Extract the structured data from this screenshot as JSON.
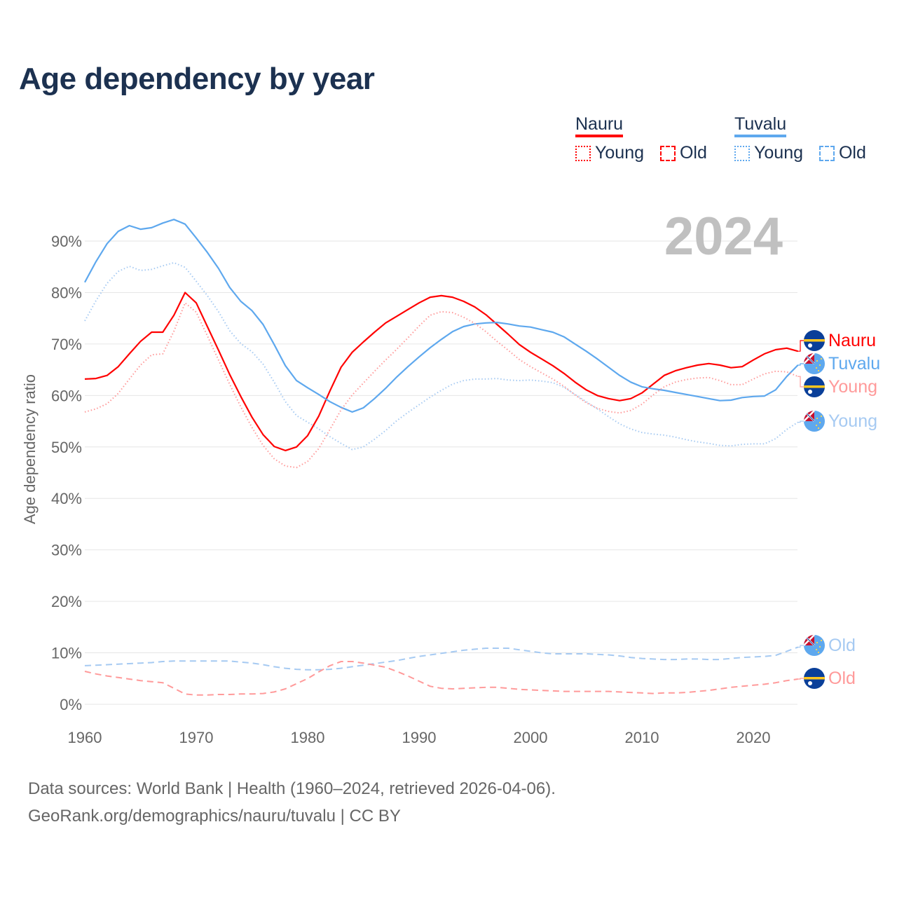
{
  "title": "Age dependency by year",
  "legend": {
    "groups": [
      {
        "country": "Nauru",
        "items": [
          "Young",
          "Old"
        ]
      },
      {
        "country": "Tuvalu",
        "items": [
          "Young",
          "Old"
        ]
      }
    ]
  },
  "year_label": "2024",
  "footer": {
    "line1": "Data sources: World Bank | Health (1960–2024, retrieved 2026-04-06).",
    "line2": "GeoRank.org/demographics/nauru/tuvalu | CC BY"
  },
  "colors": {
    "nauru": "#ff0000",
    "nauru_light": "#ff9a9a",
    "tuvalu": "#5ea8ee",
    "tuvalu_light": "#a6caf2",
    "grid": "#e6e6e6",
    "axis_text": "#666666",
    "year": "#c0c0c0"
  },
  "chart_data": {
    "type": "line",
    "title": "Age dependency by year",
    "xlabel": "",
    "ylabel": "Age dependency ratio",
    "xlim": [
      1960,
      2024
    ],
    "ylim": [
      0,
      95
    ],
    "x_ticks": [
      "1960",
      "1970",
      "1980",
      "1990",
      "2000",
      "2010",
      "2020"
    ],
    "y_ticks": [
      "0%",
      "10%",
      "20%",
      "30%",
      "40%",
      "50%",
      "60%",
      "70%",
      "80%",
      "90%"
    ],
    "x_start": 1960,
    "series": [
      {
        "name": "Nauru",
        "country": "Nauru",
        "kind": "Total",
        "end_label": "Nauru",
        "style": "solid",
        "color_key": "nauru",
        "values": [
          63.2,
          63.3,
          63.9,
          65.6,
          68.1,
          70.5,
          72.3,
          72.3,
          75.6,
          80.0,
          78.0,
          73.4,
          68.8,
          64.1,
          59.8,
          55.8,
          52.4,
          50.1,
          49.3,
          50.0,
          52.2,
          56.0,
          60.9,
          65.5,
          68.4,
          70.4,
          72.3,
          74.1,
          75.4,
          76.7,
          78.0,
          79.1,
          79.4,
          79.1,
          78.3,
          77.2,
          75.7,
          73.8,
          71.9,
          69.9,
          68.4,
          67.1,
          65.8,
          64.3,
          62.6,
          61.1,
          60.0,
          59.4,
          59.0,
          59.4,
          60.5,
          62.2,
          63.9,
          64.8,
          65.4,
          65.9,
          66.2,
          65.9,
          65.4,
          65.6,
          66.9,
          68.1,
          68.9,
          69.2,
          68.6
        ]
      },
      {
        "name": "Tuvalu",
        "country": "Tuvalu",
        "kind": "Total",
        "end_label": "Tuvalu",
        "style": "solid",
        "color_key": "tuvalu",
        "values": [
          82.0,
          86.0,
          89.5,
          91.9,
          93.0,
          92.3,
          92.6,
          93.5,
          94.2,
          93.3,
          90.6,
          87.8,
          84.7,
          81.0,
          78.3,
          76.5,
          73.8,
          69.9,
          65.8,
          62.9,
          61.5,
          60.2,
          58.8,
          57.7,
          56.8,
          57.6,
          59.4,
          61.4,
          63.6,
          65.6,
          67.5,
          69.3,
          70.9,
          72.4,
          73.4,
          73.9,
          74.1,
          74.2,
          73.9,
          73.5,
          73.3,
          72.8,
          72.3,
          71.4,
          70.0,
          68.6,
          67.1,
          65.5,
          63.9,
          62.6,
          61.7,
          61.3,
          61.0,
          60.6,
          60.2,
          59.8,
          59.4,
          59.0,
          59.1,
          59.6,
          59.8,
          59.9,
          61.1,
          63.7,
          65.9
        ]
      },
      {
        "name": "Nauru Young",
        "country": "Nauru",
        "kind": "Young",
        "end_label": "Young",
        "style": "dotted",
        "color_key": "nauru_light",
        "values": [
          56.8,
          57.4,
          58.4,
          60.4,
          63.2,
          65.9,
          67.9,
          68.1,
          72.5,
          78.0,
          76.2,
          71.6,
          66.9,
          62.2,
          57.8,
          53.8,
          50.3,
          47.7,
          46.3,
          46.0,
          47.2,
          49.7,
          53.4,
          57.2,
          60.1,
          62.4,
          64.7,
          66.9,
          69.0,
          71.2,
          73.5,
          75.6,
          76.3,
          76.1,
          75.2,
          74.0,
          72.4,
          70.5,
          68.8,
          67.0,
          65.6,
          64.4,
          63.2,
          61.8,
          60.1,
          58.6,
          57.5,
          56.9,
          56.6,
          57.1,
          58.3,
          60.1,
          61.7,
          62.6,
          63.1,
          63.4,
          63.5,
          62.9,
          62.1,
          62.1,
          63.2,
          64.2,
          64.7,
          64.6,
          63.7
        ]
      },
      {
        "name": "Tuvalu Young",
        "country": "Tuvalu",
        "kind": "Young",
        "end_label": "Young",
        "style": "dotted",
        "color_key": "tuvalu_light",
        "values": [
          74.5,
          78.4,
          81.8,
          84.1,
          85.1,
          84.3,
          84.5,
          85.2,
          85.8,
          84.9,
          82.2,
          79.4,
          76.3,
          72.6,
          70.1,
          68.5,
          66.1,
          62.6,
          58.8,
          56.1,
          54.8,
          53.5,
          52.0,
          50.7,
          49.5,
          50.0,
          51.5,
          53.2,
          55.1,
          56.7,
          58.2,
          59.7,
          61.0,
          62.2,
          62.9,
          63.2,
          63.2,
          63.3,
          63.0,
          62.9,
          63.0,
          62.8,
          62.5,
          61.6,
          60.2,
          58.8,
          57.4,
          55.9,
          54.5,
          53.5,
          52.8,
          52.5,
          52.3,
          51.9,
          51.4,
          51.0,
          50.7,
          50.3,
          50.2,
          50.5,
          50.6,
          50.6,
          51.6,
          53.4,
          54.8
        ]
      },
      {
        "name": "Tuvalu Old",
        "country": "Tuvalu",
        "kind": "Old",
        "end_label": "Old",
        "style": "dashed",
        "color_key": "tuvalu_light",
        "values": [
          7.5,
          7.6,
          7.7,
          7.8,
          7.9,
          8.0,
          8.1,
          8.3,
          8.4,
          8.4,
          8.4,
          8.4,
          8.4,
          8.4,
          8.2,
          8.0,
          7.7,
          7.3,
          7.0,
          6.8,
          6.7,
          6.7,
          6.8,
          7.0,
          7.3,
          7.6,
          7.9,
          8.2,
          8.5,
          8.9,
          9.3,
          9.6,
          9.9,
          10.2,
          10.5,
          10.7,
          10.9,
          10.9,
          10.9,
          10.6,
          10.3,
          10.0,
          9.8,
          9.8,
          9.8,
          9.8,
          9.7,
          9.6,
          9.4,
          9.1,
          8.9,
          8.8,
          8.7,
          8.7,
          8.8,
          8.8,
          8.7,
          8.7,
          8.9,
          9.1,
          9.2,
          9.3,
          9.5,
          10.3,
          11.1
        ]
      },
      {
        "name": "Nauru Old",
        "country": "Nauru",
        "kind": "Old",
        "end_label": "Old",
        "style": "dashed",
        "color_key": "nauru_light",
        "values": [
          6.4,
          5.9,
          5.5,
          5.2,
          4.9,
          4.6,
          4.4,
          4.2,
          3.1,
          2.0,
          1.8,
          1.8,
          1.9,
          1.9,
          2.0,
          2.0,
          2.1,
          2.4,
          3.0,
          4.0,
          5.0,
          6.3,
          7.5,
          8.3,
          8.3,
          8.0,
          7.6,
          7.2,
          6.4,
          5.5,
          4.5,
          3.5,
          3.1,
          3.0,
          3.1,
          3.2,
          3.3,
          3.3,
          3.1,
          2.9,
          2.8,
          2.7,
          2.6,
          2.5,
          2.5,
          2.5,
          2.5,
          2.5,
          2.4,
          2.3,
          2.2,
          2.1,
          2.2,
          2.2,
          2.3,
          2.5,
          2.7,
          3.0,
          3.3,
          3.5,
          3.7,
          3.9,
          4.2,
          4.6,
          4.9
        ]
      }
    ]
  }
}
